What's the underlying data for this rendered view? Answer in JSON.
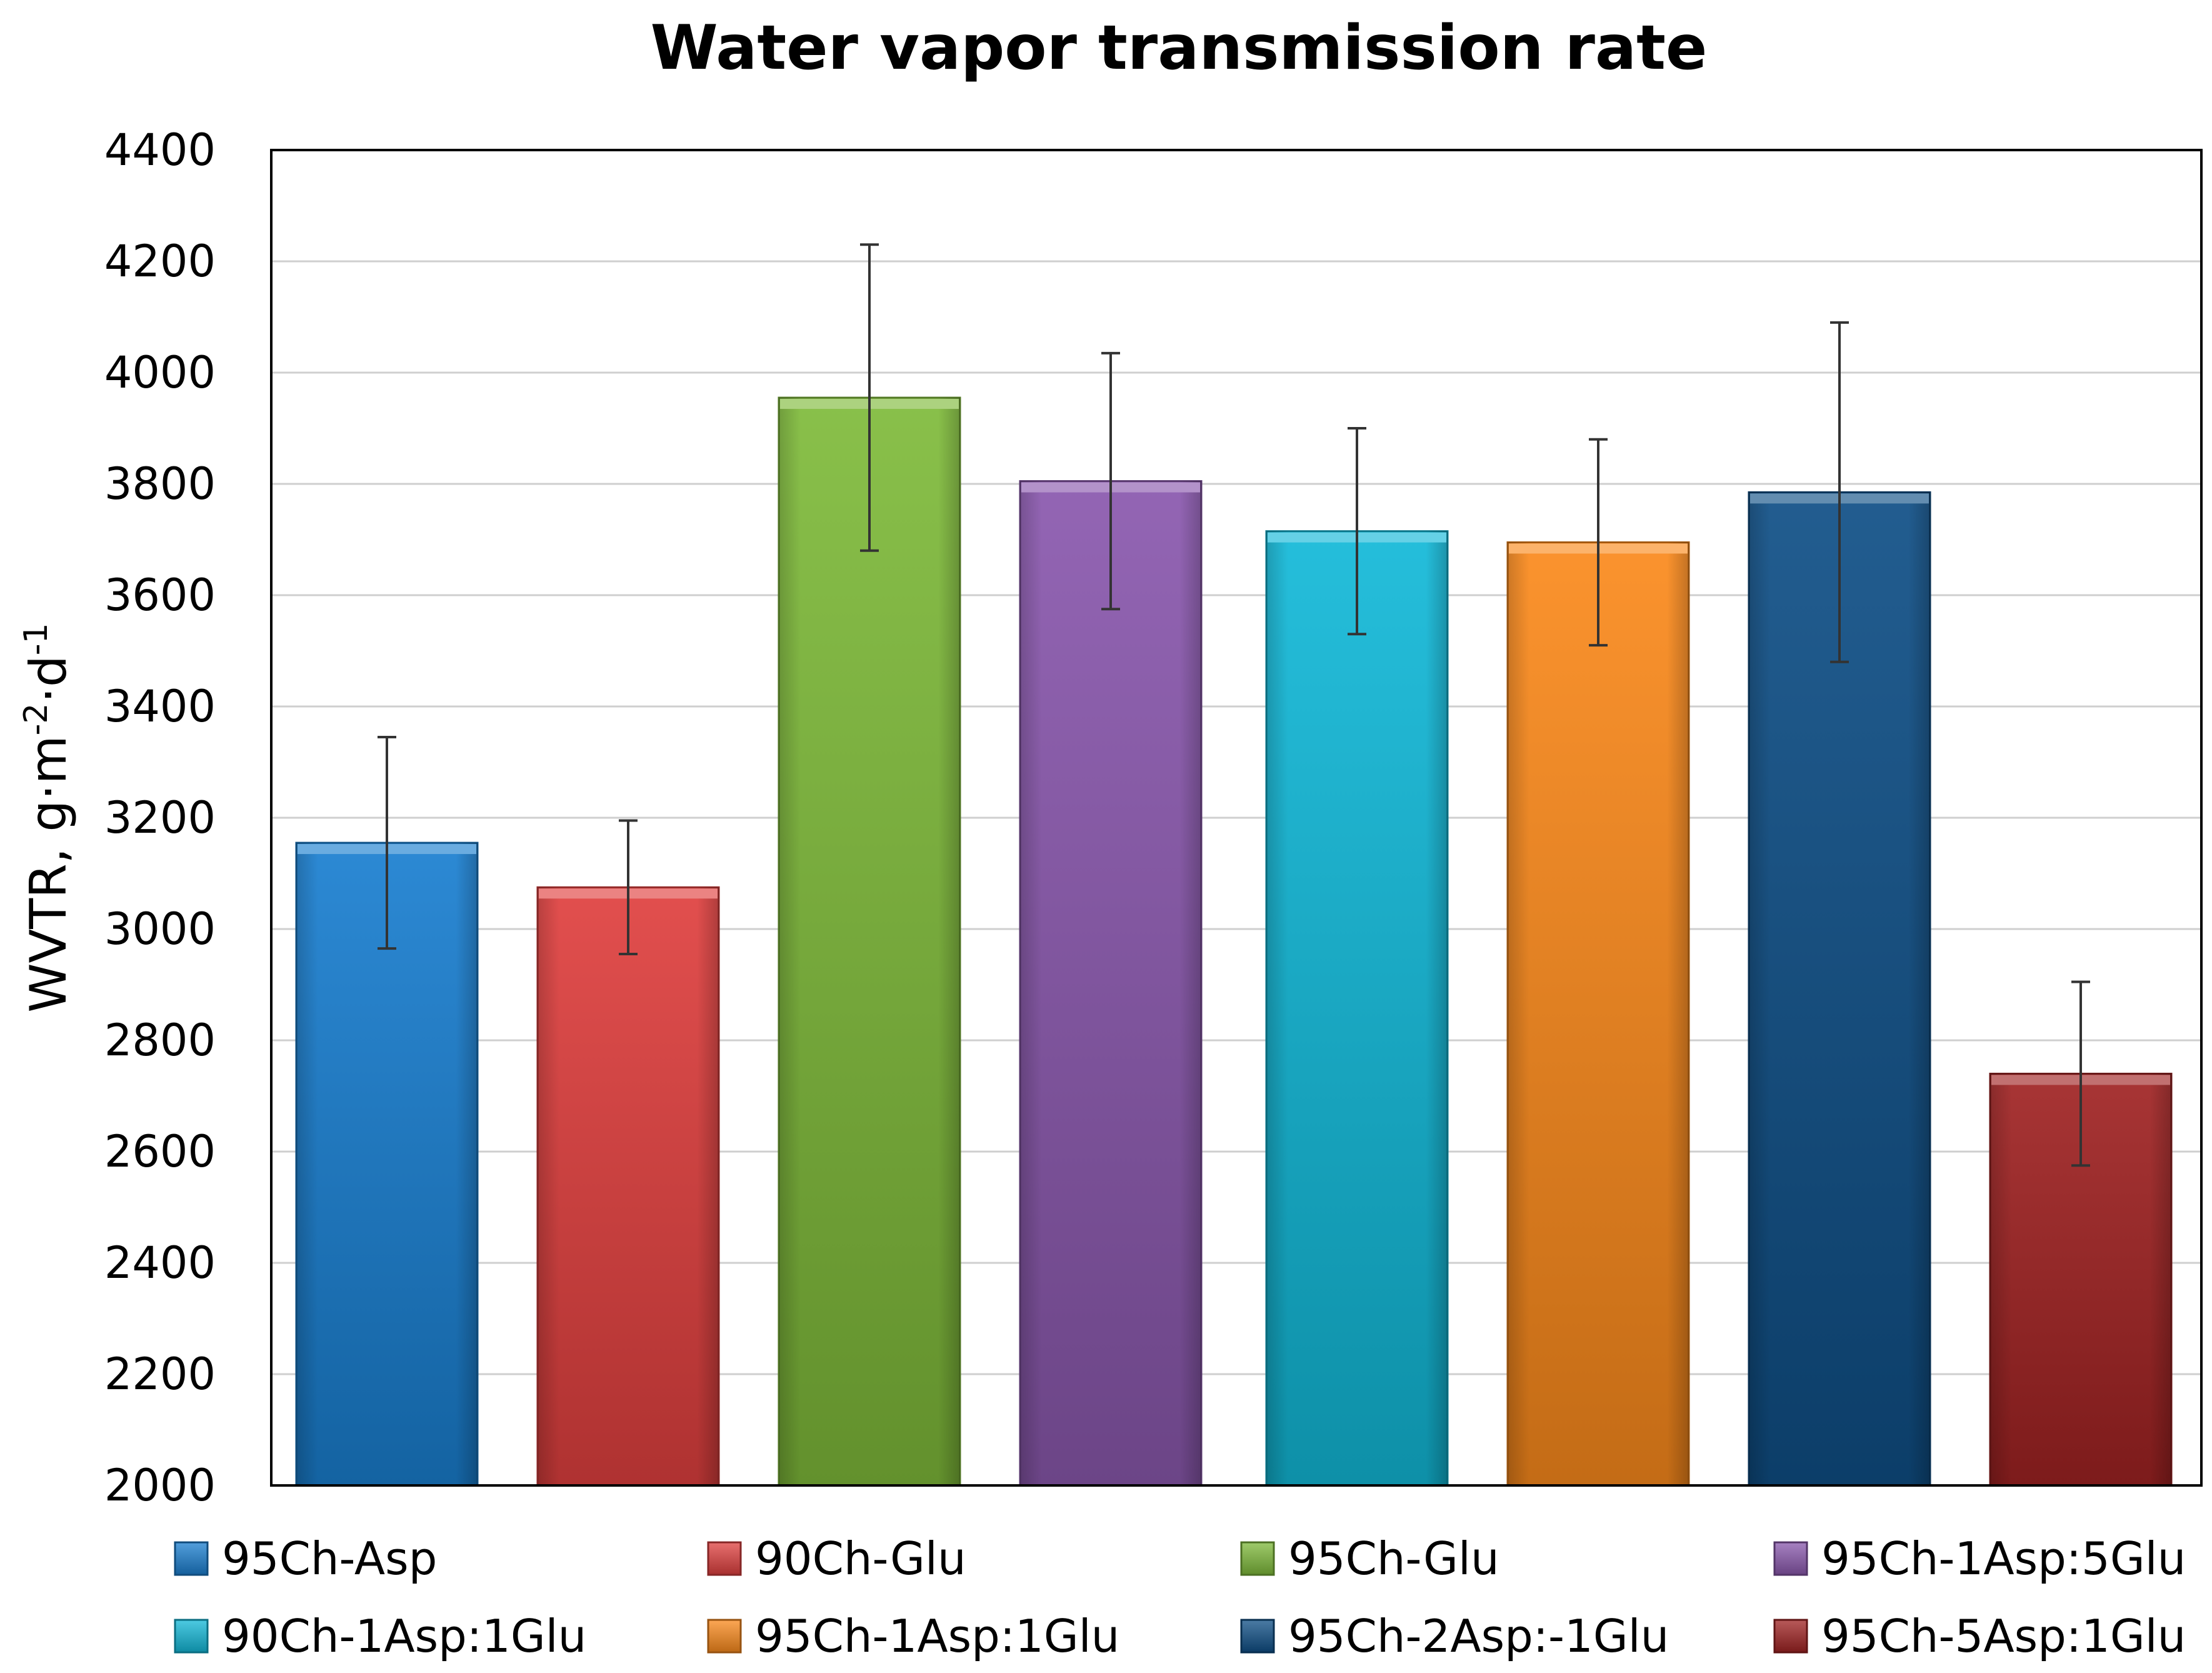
{
  "chart_data": {
    "type": "bar",
    "title": "Water vapor transmission rate",
    "ylabel": "WVTR, g·m",
    "ylabel_sup1": "-2",
    "ylabel_mid": "·d",
    "ylabel_sup2": "-1",
    "xlabel": "",
    "ylim": [
      2000,
      4400
    ],
    "yticks": [
      2000,
      2200,
      2400,
      2600,
      2800,
      3000,
      3200,
      3400,
      3600,
      3800,
      4000,
      4200,
      4400
    ],
    "grid": true,
    "legend_position": "bottom",
    "categories": [
      "95Ch-Asp",
      "90Ch-Glu",
      "95Ch-Glu",
      "95Ch-1Asp:5Glu",
      "90Ch-1Asp:1Glu",
      "95Ch-1Asp:1Glu",
      "95Ch-2Asp:-1Glu",
      "95Ch-5Asp:1Glu"
    ],
    "values": [
      3155,
      3075,
      3955,
      3805,
      3715,
      3695,
      3785,
      2740
    ],
    "errors": [
      190,
      120,
      275,
      230,
      185,
      185,
      305,
      165
    ],
    "colors": [
      "#1a7fd0",
      "#e0403f",
      "#7fba3a",
      "#8a58ad",
      "#12b8d8",
      "#fb8a1c",
      "#0f4f86",
      "#a02323"
    ]
  }
}
